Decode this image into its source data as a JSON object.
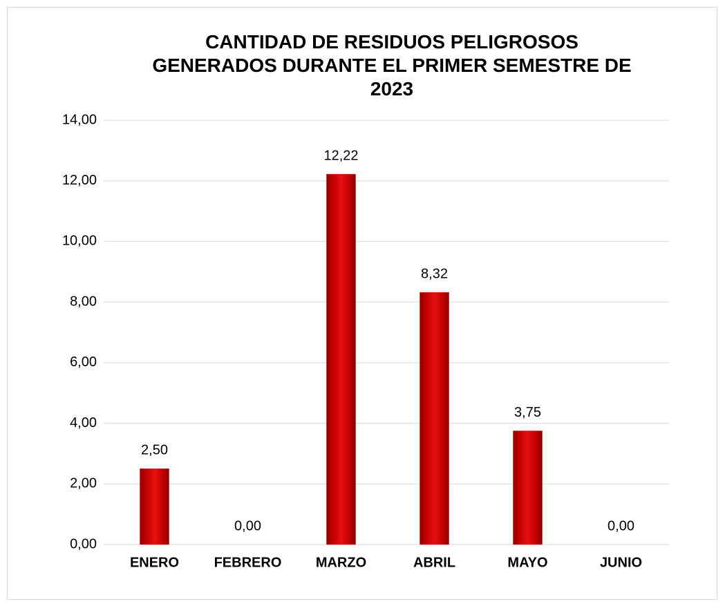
{
  "chart_data": {
    "type": "bar",
    "title": "CANTIDAD DE RESIDUOS PELIGROSOS\nGENERADOS DURANTE EL PRIMER SEMESTRE DE\n2023",
    "categories": [
      "ENERO",
      "FEBRERO",
      "MARZO",
      "ABRIL",
      "MAYO",
      "JUNIO"
    ],
    "values": [
      2.5,
      0,
      12.22,
      8.32,
      3.75,
      0
    ],
    "value_labels": [
      "2,50",
      "0,00",
      "12,22",
      "8,32",
      "3,75",
      "0,00"
    ],
    "color": "#d40a0a",
    "ylim": [
      0,
      14
    ],
    "yticks": [
      {
        "value": 0,
        "label": "0,00"
      },
      {
        "value": 2,
        "label": "2,00"
      },
      {
        "value": 4,
        "label": "4,00"
      },
      {
        "value": 6,
        "label": "6,00"
      },
      {
        "value": 8,
        "label": "8,00"
      },
      {
        "value": 10,
        "label": "10,00"
      },
      {
        "value": 12,
        "label": "12,00"
      },
      {
        "value": 14,
        "label": "14,00"
      }
    ],
    "grid": true
  }
}
